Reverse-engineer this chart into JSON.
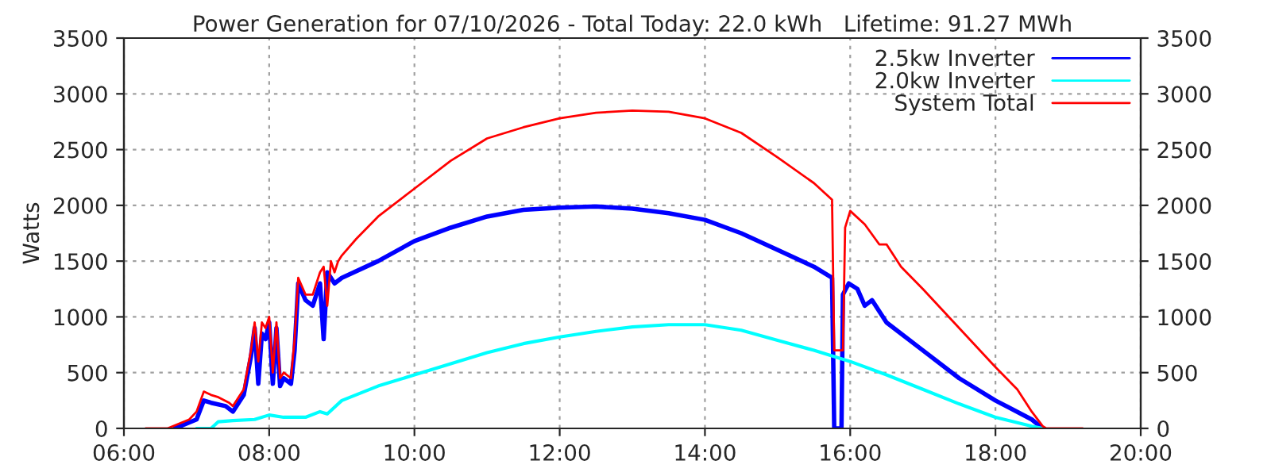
{
  "chart_data": {
    "type": "line",
    "title": "Power Generation for 07/10/2026 - Total Today: 22.0 kWh   Lifetime: 91.27 MWh",
    "ylabel": "Watts",
    "xlim": [
      6,
      20
    ],
    "xticks": [
      {
        "value": 6,
        "label": "06:00"
      },
      {
        "value": 8,
        "label": "08:00"
      },
      {
        "value": 10,
        "label": "10:00"
      },
      {
        "value": 12,
        "label": "12:00"
      },
      {
        "value": 14,
        "label": "14:00"
      },
      {
        "value": 16,
        "label": "16:00"
      },
      {
        "value": 18,
        "label": "18:00"
      },
      {
        "value": 20,
        "label": "20:00"
      }
    ],
    "ylim": [
      0,
      3500
    ],
    "yticks": [
      0,
      500,
      1000,
      1500,
      2000,
      2500,
      3000,
      3500
    ],
    "y2lim": [
      0,
      3500
    ],
    "y2ticks": [
      0,
      500,
      1000,
      1500,
      2000,
      2500,
      3000,
      3500
    ],
    "grid": true,
    "legend": "top right",
    "line_style": "solid",
    "marker": "none",
    "series": [
      {
        "name": "2.5kw Inverter",
        "color": "#0000ff",
        "x": [
          6.7,
          7.0,
          7.1,
          7.2,
          7.4,
          7.5,
          7.65,
          7.75,
          7.8,
          7.85,
          7.9,
          7.95,
          8.0,
          8.05,
          8.1,
          8.15,
          8.2,
          8.3,
          8.35,
          8.4,
          8.5,
          8.6,
          8.7,
          8.75,
          8.8,
          8.9,
          9.0,
          9.5,
          10,
          10.5,
          11,
          11.5,
          12,
          12.5,
          13,
          13.5,
          14,
          14.5,
          15,
          15.5,
          15.75,
          15.78,
          15.88,
          15.9,
          15.98,
          16.1,
          16.2,
          16.3,
          16.5,
          17,
          17.5,
          18,
          18.5,
          18.65
        ],
        "values": [
          0,
          80,
          250,
          230,
          200,
          150,
          300,
          650,
          900,
          400,
          850,
          800,
          950,
          400,
          900,
          380,
          450,
          400,
          700,
          1300,
          1150,
          1100,
          1300,
          800,
          1400,
          1300,
          1350,
          1500,
          1680,
          1800,
          1900,
          1960,
          1980,
          1990,
          1970,
          1930,
          1870,
          1750,
          1600,
          1450,
          1350,
          0,
          0,
          1200,
          1300,
          1250,
          1100,
          1150,
          950,
          700,
          450,
          250,
          80,
          0
        ]
      },
      {
        "name": "2.0kw Inverter",
        "color": "#00ffff",
        "x": [
          7.0,
          7.2,
          7.3,
          7.5,
          7.8,
          8.0,
          8.2,
          8.5,
          8.7,
          8.8,
          9.0,
          9.5,
          10,
          10.5,
          11,
          11.5,
          12,
          12.5,
          13,
          13.5,
          14,
          14.5,
          15,
          15.5,
          16,
          16.5,
          17,
          17.5,
          18,
          18.5,
          18.65
        ],
        "values": [
          0,
          0,
          60,
          70,
          80,
          120,
          100,
          100,
          150,
          130,
          250,
          380,
          480,
          580,
          680,
          760,
          820,
          870,
          910,
          930,
          930,
          880,
          790,
          700,
          600,
          480,
          350,
          220,
          100,
          20,
          0
        ]
      },
      {
        "name": "System Total",
        "color": "#ff0000",
        "x": [
          6.3,
          6.6,
          6.9,
          7.0,
          7.1,
          7.2,
          7.3,
          7.45,
          7.5,
          7.65,
          7.75,
          7.8,
          7.85,
          7.9,
          7.95,
          8.0,
          8.05,
          8.1,
          8.15,
          8.2,
          8.3,
          8.35,
          8.4,
          8.5,
          8.6,
          8.7,
          8.75,
          8.8,
          8.85,
          8.9,
          8.95,
          9.0,
          9.2,
          9.5,
          10,
          10.5,
          11,
          11.5,
          12,
          12.5,
          13,
          13.5,
          14,
          14.5,
          15,
          15.5,
          15.75,
          15.78,
          15.9,
          15.93,
          16.0,
          16.2,
          16.4,
          16.5,
          16.7,
          17,
          17.5,
          18,
          18.3,
          18.5,
          18.65,
          18.7,
          19.2
        ],
        "values": [
          0,
          0,
          80,
          150,
          330,
          300,
          280,
          230,
          200,
          350,
          700,
          950,
          600,
          950,
          900,
          1000,
          500,
          950,
          450,
          500,
          450,
          800,
          1350,
          1200,
          1200,
          1400,
          1450,
          1100,
          1500,
          1400,
          1500,
          1550,
          1700,
          1900,
          2150,
          2400,
          2600,
          2700,
          2780,
          2830,
          2850,
          2840,
          2780,
          2650,
          2430,
          2200,
          2050,
          700,
          700,
          1800,
          1950,
          1830,
          1650,
          1650,
          1450,
          1250,
          900,
          550,
          350,
          150,
          20,
          0,
          0
        ]
      }
    ]
  }
}
